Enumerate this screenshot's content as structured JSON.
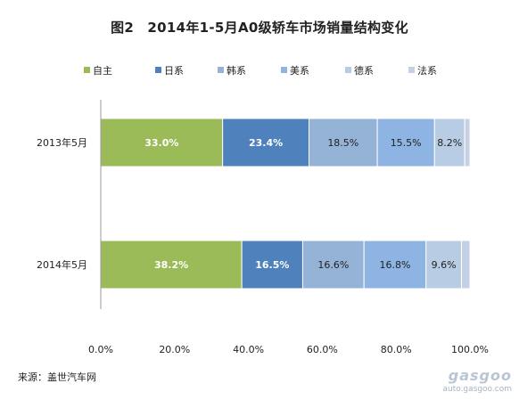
{
  "title": "图2　2014年1-5月A0级轿车市场销量结构变化",
  "source": "来源：盖世汽车网",
  "watermark": {
    "logo": "gasgoo",
    "url": "auto.gasgoo.com"
  },
  "chart_data": {
    "type": "bar",
    "orientation": "horizontal",
    "stacked": true,
    "categories": [
      "2013年5月",
      "2014年5月"
    ],
    "series": [
      {
        "name": "自主",
        "color": "#9bbb59",
        "values": [
          33.0,
          38.2
        ],
        "labels": [
          "33.0%",
          "38.2%"
        ]
      },
      {
        "name": "日系",
        "color": "#4f81bd",
        "values": [
          23.4,
          16.5
        ],
        "labels": [
          "23.4%",
          "16.5%"
        ]
      },
      {
        "name": "韩系",
        "color": "#95b3d7",
        "values": [
          18.5,
          16.6
        ],
        "labels": [
          "18.5%",
          "16.6%"
        ]
      },
      {
        "name": "美系",
        "color": "#8db4e2",
        "values": [
          15.5,
          16.8
        ],
        "labels": [
          "15.5%",
          "16.8%"
        ]
      },
      {
        "name": "德系",
        "color": "#b8cce4",
        "values": [
          8.2,
          9.6
        ],
        "labels": [
          "8.2%",
          "9.6%"
        ]
      },
      {
        "name": "法系",
        "color": "#c5cfe6",
        "values": [
          1.4,
          2.3
        ],
        "labels": [
          "",
          ""
        ]
      }
    ],
    "xlim": [
      0,
      100
    ],
    "xticks": [
      "0.0%",
      "20.0%",
      "40.0%",
      "60.0%",
      "80.0%",
      "100.0%"
    ],
    "legend_position": "top",
    "grid": false
  }
}
